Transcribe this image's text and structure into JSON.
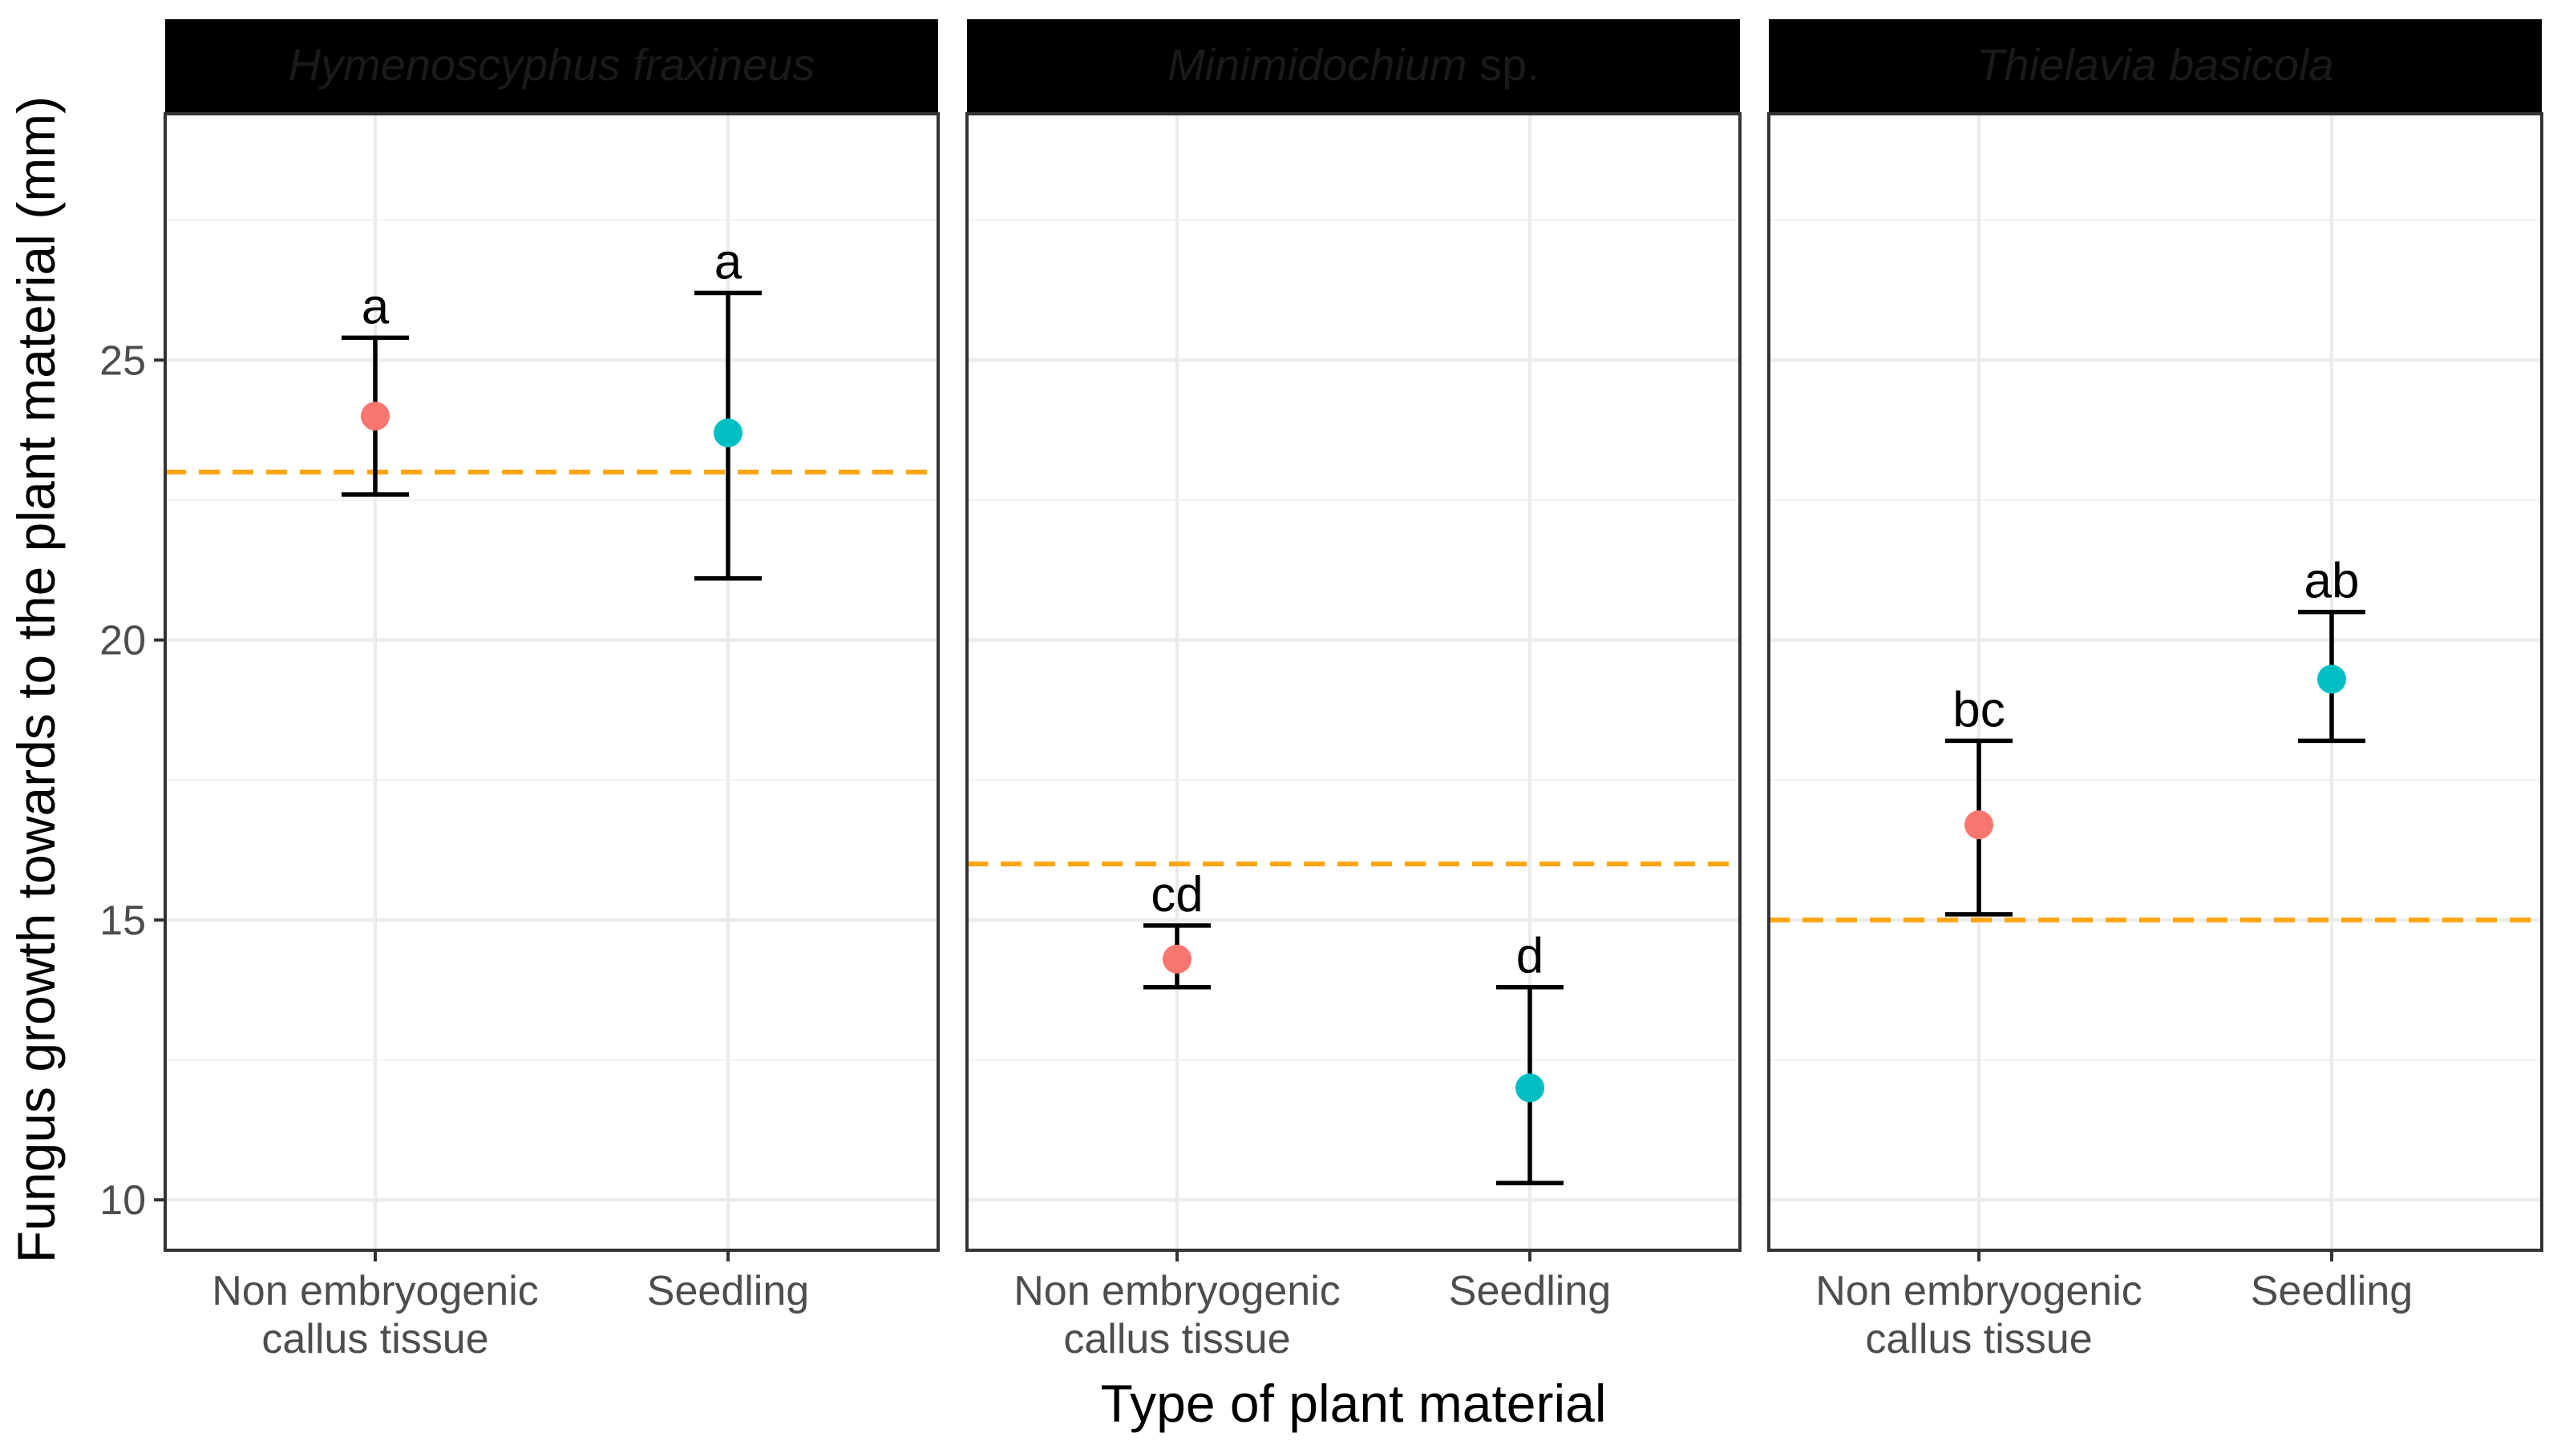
{
  "chart_data": {
    "type": "scatter",
    "subtype": "faceted point-range (mean with error bars)",
    "xlabel": "Type of plant material",
    "ylabel": "Fungus growth towards to the plant material (mm)",
    "categories": [
      {
        "line1": "Non embryogenic",
        "line2": "callus tissue"
      },
      {
        "line1": "Seedling",
        "line2": ""
      }
    ],
    "y_ticks": [
      10,
      15,
      20,
      25
    ],
    "ylim": [
      9.1,
      29.4
    ],
    "colors": {
      "callus": "#f8766d",
      "seedling": "#00bfc4",
      "reference_line": "#ffa500"
    },
    "facets": [
      {
        "title": "Hymenoscyphus fraxineus",
        "title_italic": "Hymenoscyphus fraxineus",
        "title_plain": "",
        "reference_line": 23,
        "points": [
          {
            "category": "Non embryogenic callus tissue",
            "mean": 24.0,
            "lower": 22.6,
            "upper": 25.4,
            "label": "a",
            "color": "#f8766d"
          },
          {
            "category": "Seedling",
            "mean": 23.7,
            "lower": 21.1,
            "upper": 26.2,
            "label": "a",
            "color": "#00bfc4"
          }
        ]
      },
      {
        "title": "Minimidochium sp.",
        "title_italic": "Minimidochium",
        "title_plain": " sp.",
        "reference_line": 16,
        "points": [
          {
            "category": "Non embryogenic callus tissue",
            "mean": 14.3,
            "lower": 13.8,
            "upper": 14.9,
            "label": "cd",
            "color": "#f8766d"
          },
          {
            "category": "Seedling",
            "mean": 12.0,
            "lower": 10.3,
            "upper": 13.8,
            "label": "d",
            "color": "#00bfc4"
          }
        ]
      },
      {
        "title": "Thielavia basicola",
        "title_italic": "Thielavia basicola",
        "title_plain": "",
        "reference_line": 15,
        "points": [
          {
            "category": "Non embryogenic callus tissue",
            "mean": 16.7,
            "lower": 15.1,
            "upper": 18.2,
            "label": "bc",
            "color": "#f8766d"
          },
          {
            "category": "Seedling",
            "mean": 19.3,
            "lower": 18.2,
            "upper": 20.5,
            "label": "ab",
            "color": "#00bfc4"
          }
        ]
      }
    ]
  }
}
